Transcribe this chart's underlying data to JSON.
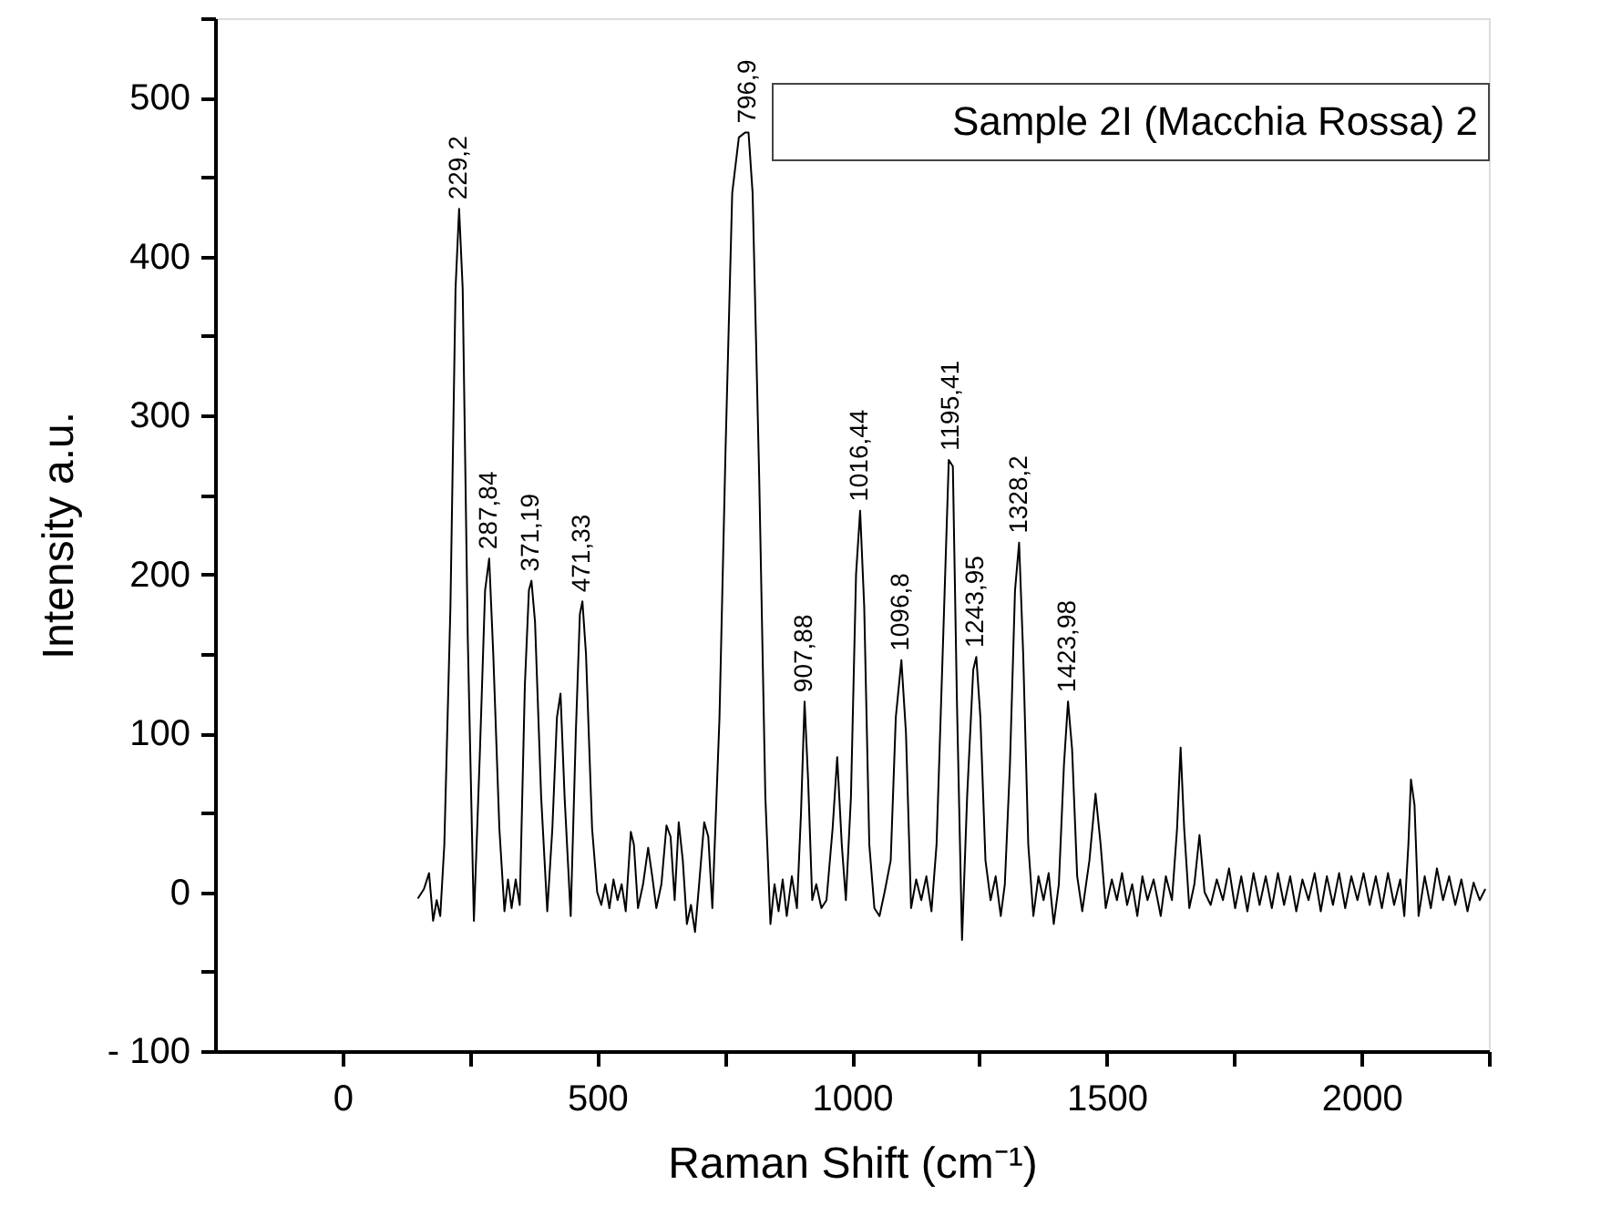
{
  "chart_data": {
    "type": "line",
    "title": "Sample 2I (Macchia Rossa) 2",
    "xlabel": "Raman Shift (cm⁻¹)",
    "ylabel": "Intensity a.u.",
    "xlim": [
      -250,
      2250
    ],
    "ylim": [
      -100,
      550
    ],
    "xticks": [
      0,
      {
        "value": 250,
        "label": null
      },
      500,
      {
        "value": 750,
        "label": null
      },
      1000,
      {
        "value": 1250,
        "label": null
      },
      1500,
      {
        "value": 1750,
        "label": null
      },
      2000,
      {
        "value": 2250,
        "label": null
      }
    ],
    "yticks": [
      {
        "value": -100,
        "label": "- 100"
      },
      {
        "value": -50,
        "label": null
      },
      0,
      {
        "value": 50,
        "label": null
      },
      100,
      {
        "value": 150,
        "label": null
      },
      200,
      {
        "value": 250,
        "label": null
      },
      300,
      {
        "value": 350,
        "label": null
      },
      400,
      {
        "value": 450,
        "label": null
      },
      500,
      {
        "value": 550,
        "label": null
      }
    ],
    "grid": false,
    "marker": "none",
    "line_style": "solid",
    "x": [
      148,
      160,
      170,
      178,
      185,
      192,
      200,
      212,
      222,
      229,
      236,
      246,
      258,
      270,
      280,
      288,
      296,
      308,
      318,
      325,
      332,
      340,
      348,
      358,
      366,
      371,
      378,
      390,
      402,
      412,
      421,
      428,
      436,
      448,
      458,
      466,
      471,
      478,
      490,
      500,
      508,
      516,
      524,
      532,
      540,
      548,
      556,
      566,
      572,
      580,
      590,
      600,
      608,
      616,
      626,
      636,
      644,
      652,
      660,
      668,
      676,
      684,
      692,
      700,
      710,
      718,
      726,
      740,
      752,
      765,
      778,
      790,
      797,
      805,
      818,
      830,
      840,
      848,
      856,
      864,
      872,
      882,
      892,
      900,
      907,
      914,
      922,
      930,
      940,
      950,
      962,
      971,
      980,
      988,
      998,
      1008,
      1016,
      1024,
      1034,
      1044,
      1054,
      1064,
      1076,
      1086,
      1097,
      1106,
      1116,
      1126,
      1136,
      1146,
      1156,
      1166,
      1178,
      1190,
      1198,
      1206,
      1216,
      1226,
      1238,
      1244,
      1252,
      1262,
      1272,
      1282,
      1292,
      1300,
      1310,
      1320,
      1328,
      1336,
      1346,
      1356,
      1366,
      1376,
      1386,
      1396,
      1406,
      1416,
      1424,
      1432,
      1442,
      1452,
      1466,
      1478,
      1488,
      1498,
      1510,
      1520,
      1530,
      1540,
      1550,
      1560,
      1570,
      1580,
      1592,
      1606,
      1616,
      1628,
      1638,
      1645,
      1652,
      1662,
      1672,
      1682,
      1692,
      1704,
      1716,
      1728,
      1740,
      1752,
      1764,
      1776,
      1788,
      1800,
      1812,
      1824,
      1836,
      1848,
      1860,
      1872,
      1884,
      1896,
      1908,
      1920,
      1932,
      1944,
      1956,
      1968,
      1980,
      1992,
      2004,
      2016,
      2028,
      2040,
      2052,
      2064,
      2076,
      2084,
      2092,
      2097,
      2104,
      2112,
      2124,
      2136,
      2148,
      2160,
      2172,
      2184,
      2196,
      2208,
      2220,
      2232,
      2243
    ],
    "series": [
      {
        "color": "#000000",
        "values": [
          -4,
          2,
          12,
          -18,
          -5,
          -15,
          30,
          180,
          380,
          430,
          380,
          160,
          -18,
          90,
          190,
          210,
          150,
          40,
          -12,
          8,
          -10,
          8,
          -8,
          130,
          190,
          196,
          170,
          60,
          -12,
          40,
          110,
          125,
          60,
          -15,
          100,
          175,
          183,
          150,
          40,
          0,
          -8,
          5,
          -10,
          8,
          -5,
          5,
          -12,
          38,
          30,
          -10,
          5,
          28,
          10,
          -10,
          5,
          42,
          35,
          -5,
          44,
          20,
          -20,
          -8,
          -25,
          5,
          44,
          35,
          -10,
          110,
          280,
          440,
          475,
          478,
          478,
          440,
          260,
          60,
          -20,
          5,
          -12,
          8,
          -15,
          10,
          -10,
          50,
          120,
          70,
          -5,
          5,
          -10,
          -5,
          40,
          85,
          30,
          -5,
          60,
          200,
          240,
          180,
          30,
          -10,
          -15,
          0,
          20,
          110,
          146,
          100,
          -10,
          8,
          -5,
          10,
          -12,
          30,
          150,
          272,
          268,
          120,
          -30,
          60,
          140,
          148,
          110,
          20,
          -5,
          10,
          -15,
          5,
          80,
          190,
          220,
          150,
          30,
          -15,
          10,
          -5,
          12,
          -20,
          5,
          80,
          120,
          90,
          10,
          -12,
          20,
          62,
          30,
          -10,
          8,
          -5,
          12,
          -8,
          5,
          -15,
          10,
          -5,
          8,
          -15,
          10,
          -5,
          40,
          91,
          40,
          -10,
          5,
          36,
          0,
          -8,
          8,
          -5,
          15,
          -10,
          10,
          -12,
          12,
          -8,
          10,
          -10,
          12,
          -8,
          10,
          -12,
          8,
          -5,
          12,
          -12,
          10,
          -8,
          12,
          -10,
          10,
          -5,
          12,
          -8,
          10,
          -10,
          12,
          -8,
          8,
          -15,
          30,
          71,
          55,
          -15,
          10,
          -10,
          15,
          -5,
          10,
          -8,
          8,
          -12,
          6,
          -5,
          2
        ]
      }
    ],
    "annotations": [
      {
        "text": "229,2",
        "x": 229.2,
        "y": 430
      },
      {
        "text": "287,84",
        "x": 287.84,
        "y": 210
      },
      {
        "text": "371,19",
        "x": 371.19,
        "y": 196
      },
      {
        "text": "471,33",
        "x": 471.33,
        "y": 183
      },
      {
        "text": "796,9",
        "x": 796.9,
        "y": 478
      },
      {
        "text": "907,88",
        "x": 907.88,
        "y": 120
      },
      {
        "text": "1016,44",
        "x": 1016.44,
        "y": 240
      },
      {
        "text": "1096,8",
        "x": 1096.8,
        "y": 146
      },
      {
        "text": "1195,41",
        "x": 1195.41,
        "y": 272
      },
      {
        "text": "1243,95",
        "x": 1243.95,
        "y": 148
      },
      {
        "text": "1328,2",
        "x": 1328.2,
        "y": 220
      },
      {
        "text": "1423,98",
        "x": 1423.98,
        "y": 120
      }
    ]
  }
}
